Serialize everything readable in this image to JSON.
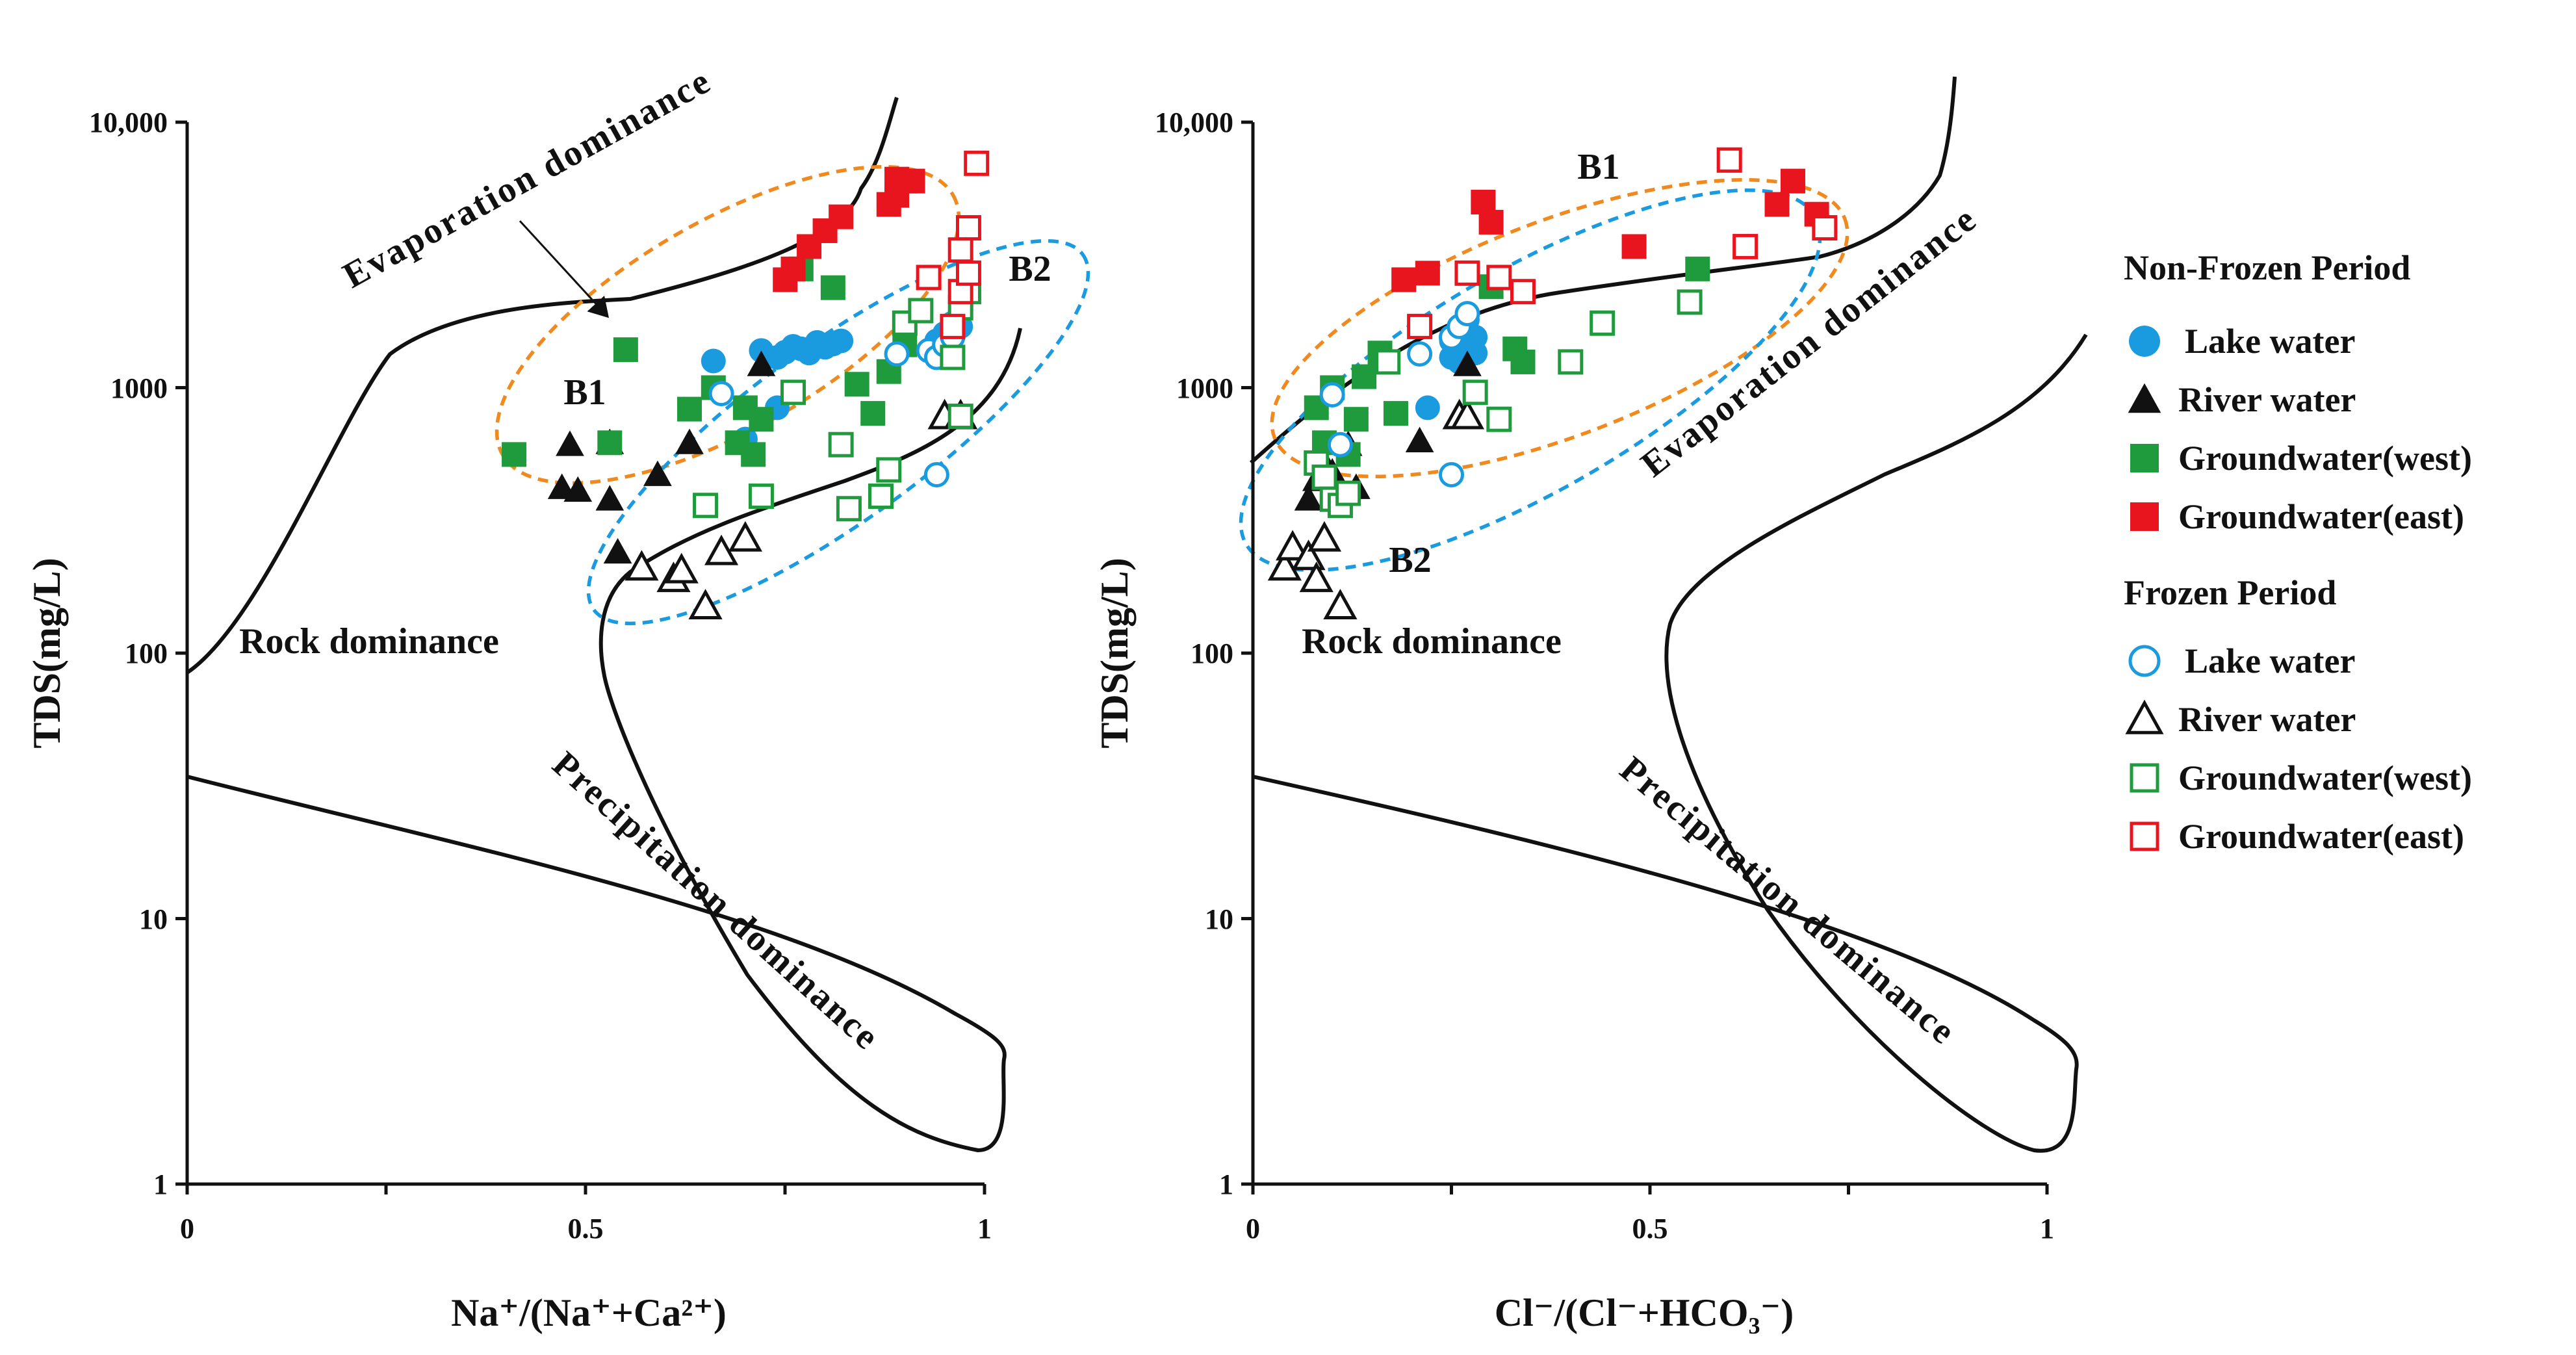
{
  "chart_data": [
    {
      "type": "scatter",
      "id": "gibbs-na",
      "xlabel": "Na⁺/(Na⁺+Ca²⁺)",
      "ylabel": "TDS(mg/L)",
      "xlim": [
        0,
        1
      ],
      "ylim": [
        1,
        10000
      ],
      "yscale": "log",
      "x_ticks": [
        {
          "value": 0,
          "label": "0"
        },
        {
          "value": 0.5,
          "label": "0.5"
        },
        {
          "value": 1,
          "label": "1"
        }
      ],
      "y_ticks": [
        {
          "value": 1,
          "label": "1"
        },
        {
          "value": 10,
          "label": "10"
        },
        {
          "value": 100,
          "label": "100"
        },
        {
          "value": 1000,
          "label": "1000"
        },
        {
          "value": 10000,
          "label": "10,000"
        }
      ],
      "region_labels": [
        "Evaporation dominance",
        "Rock dominance",
        "Precipitation dominance"
      ],
      "group_labels": [
        "B1",
        "B2"
      ],
      "series": [
        {
          "name": "Lake water (non-frozen)",
          "marker": "circle",
          "filled": true,
          "color": "#1a9be0",
          "points": [
            [
              0.66,
              1260
            ],
            [
              0.7,
              640
            ],
            [
              0.72,
              1380
            ],
            [
              0.74,
              1300
            ],
            [
              0.75,
              1360
            ],
            [
              0.76,
              1430
            ],
            [
              0.77,
              1400
            ],
            [
              0.78,
              1350
            ],
            [
              0.79,
              1480
            ],
            [
              0.8,
              1420
            ],
            [
              0.81,
              1460
            ],
            [
              0.82,
              1500
            ],
            [
              0.74,
              840
            ],
            [
              0.94,
              1500
            ],
            [
              0.95,
              1600
            ],
            [
              0.96,
              1750
            ],
            [
              0.97,
              1700
            ]
          ]
        },
        {
          "name": "River water (non-frozen)",
          "marker": "triangle",
          "filled": true,
          "color": "#111111",
          "points": [
            [
              0.48,
              610
            ],
            [
              0.47,
              420
            ],
            [
              0.49,
              410
            ],
            [
              0.53,
              620
            ],
            [
              0.53,
              380
            ],
            [
              0.54,
              240
            ],
            [
              0.59,
              470
            ],
            [
              0.63,
              620
            ],
            [
              0.72,
              1220
            ]
          ]
        },
        {
          "name": "Groundwater(west) (non-frozen)",
          "marker": "square",
          "filled": true,
          "color": "#1f9a3c",
          "points": [
            [
              0.41,
              560
            ],
            [
              0.53,
              620
            ],
            [
              0.55,
              1390
            ],
            [
              0.63,
              830
            ],
            [
              0.66,
              1000
            ],
            [
              0.69,
              620
            ],
            [
              0.7,
              840
            ],
            [
              0.71,
              560
            ],
            [
              0.72,
              760
            ],
            [
              0.77,
              2800
            ],
            [
              0.81,
              2380
            ],
            [
              0.84,
              1030
            ],
            [
              0.86,
              800
            ],
            [
              0.88,
              1150
            ],
            [
              0.9,
              1450
            ]
          ]
        },
        {
          "name": "Groundwater(east) (non-frozen)",
          "marker": "square",
          "filled": true,
          "color": "#e8141e",
          "points": [
            [
              0.75,
              2550
            ],
            [
              0.76,
              2800
            ],
            [
              0.78,
              3400
            ],
            [
              0.8,
              3900
            ],
            [
              0.82,
              4400
            ],
            [
              0.88,
              4900
            ],
            [
              0.89,
              5300
            ],
            [
              0.9,
              6000
            ],
            [
              0.89,
              6100
            ],
            [
              0.91,
              6000
            ]
          ]
        },
        {
          "name": "Lake water (frozen)",
          "marker": "circle",
          "filled": false,
          "color": "#1a9be0",
          "points": [
            [
              0.67,
              950
            ],
            [
              0.89,
              1340
            ],
            [
              0.93,
              1380
            ],
            [
              0.94,
              1300
            ],
            [
              0.95,
              1450
            ],
            [
              0.96,
              1550
            ],
            [
              0.97,
              1950
            ],
            [
              0.94,
              470
            ]
          ]
        },
        {
          "name": "River water (frozen)",
          "marker": "triangle",
          "filled": false,
          "color": "#111111",
          "points": [
            [
              0.57,
              210
            ],
            [
              0.61,
              190
            ],
            [
              0.62,
              205
            ],
            [
              0.65,
              150
            ],
            [
              0.67,
              240
            ],
            [
              0.7,
              270
            ],
            [
              0.95,
              780
            ],
            [
              0.97,
              780
            ]
          ]
        },
        {
          "name": "Groundwater(west) (frozen)",
          "marker": "square",
          "filled": false,
          "color": "#1f9a3c",
          "points": [
            [
              0.65,
              360
            ],
            [
              0.72,
              390
            ],
            [
              0.76,
              960
            ],
            [
              0.82,
              610
            ],
            [
              0.83,
              350
            ],
            [
              0.87,
              390
            ],
            [
              0.88,
              490
            ],
            [
              0.9,
              1750
            ],
            [
              0.92,
              1950
            ],
            [
              0.96,
              1300
            ],
            [
              0.97,
              2000
            ],
            [
              0.98,
              2300
            ],
            [
              0.97,
              780
            ]
          ]
        },
        {
          "name": "Groundwater(east) (frozen)",
          "marker": "square",
          "filled": false,
          "color": "#e8141e",
          "points": [
            [
              0.93,
              2600
            ],
            [
              0.97,
              2300
            ],
            [
              0.98,
              2700
            ],
            [
              0.97,
              3300
            ],
            [
              0.98,
              4000
            ],
            [
              0.99,
              7000
            ],
            [
              0.96,
              1700
            ]
          ]
        }
      ]
    },
    {
      "type": "scatter",
      "id": "gibbs-cl",
      "xlabel": "Cl⁻/(Cl⁻+HCO₃⁻)",
      "ylabel": "TDS(mg/L)",
      "xlim": [
        0,
        1
      ],
      "ylim": [
        1,
        10000
      ],
      "yscale": "log",
      "x_ticks": [
        {
          "value": 0,
          "label": "0"
        },
        {
          "value": 0.5,
          "label": "0.5"
        },
        {
          "value": 1,
          "label": "1"
        }
      ],
      "y_ticks": [
        {
          "value": 1,
          "label": "1"
        },
        {
          "value": 10,
          "label": "10"
        },
        {
          "value": 100,
          "label": "100"
        },
        {
          "value": 1000,
          "label": "1000"
        },
        {
          "value": 10000,
          "label": "10,000"
        }
      ],
      "region_labels": [
        "Evaporation dominance",
        "Rock dominance",
        "Precipitation dominance"
      ],
      "group_labels": [
        "B1",
        "B2"
      ],
      "series": [
        {
          "name": "Lake water (non-frozen)",
          "marker": "circle",
          "filled": true,
          "color": "#1a9be0",
          "points": [
            [
              0.25,
              1500
            ],
            [
              0.26,
              1700
            ],
            [
              0.27,
              1400
            ],
            [
              0.26,
              1250
            ],
            [
              0.28,
              1550
            ],
            [
              0.27,
              1800
            ],
            [
              0.25,
              1300
            ],
            [
              0.26,
              1450
            ],
            [
              0.22,
              840
            ],
            [
              0.28,
              1350
            ],
            [
              0.27,
              1600
            ]
          ]
        },
        {
          "name": "River water (non-frozen)",
          "marker": "triangle",
          "filled": true,
          "color": "#111111",
          "points": [
            [
              0.07,
              380
            ],
            [
              0.08,
              450
            ],
            [
              0.09,
              520
            ],
            [
              0.1,
              480
            ],
            [
              0.11,
              420
            ],
            [
              0.12,
              610
            ],
            [
              0.13,
              420
            ],
            [
              0.21,
              630
            ],
            [
              0.27,
              1220
            ]
          ]
        },
        {
          "name": "Groundwater(west) (non-frozen)",
          "marker": "square",
          "filled": true,
          "color": "#1f9a3c",
          "points": [
            [
              0.08,
              840
            ],
            [
              0.09,
              620
            ],
            [
              0.1,
              1000
            ],
            [
              0.12,
              560
            ],
            [
              0.13,
              760
            ],
            [
              0.14,
              1100
            ],
            [
              0.16,
              1350
            ],
            [
              0.18,
              800
            ],
            [
              0.3,
              2400
            ],
            [
              0.33,
              1400
            ],
            [
              0.34,
              1250
            ],
            [
              0.56,
              2800
            ]
          ]
        },
        {
          "name": "Groundwater(east) (non-frozen)",
          "marker": "square",
          "filled": true,
          "color": "#e8141e",
          "points": [
            [
              0.19,
              2550
            ],
            [
              0.22,
              2700
            ],
            [
              0.29,
              5000
            ],
            [
              0.3,
              4200
            ],
            [
              0.48,
              3400
            ],
            [
              0.66,
              4900
            ],
            [
              0.68,
              6000
            ],
            [
              0.71,
              4500
            ]
          ]
        },
        {
          "name": "Lake water (frozen)",
          "marker": "circle",
          "filled": false,
          "color": "#1a9be0",
          "points": [
            [
              0.1,
              940
            ],
            [
              0.11,
              610
            ],
            [
              0.21,
              1340
            ],
            [
              0.25,
              1550
            ],
            [
              0.26,
              1700
            ],
            [
              0.27,
              1900
            ],
            [
              0.25,
              470
            ]
          ]
        },
        {
          "name": "River water (frozen)",
          "marker": "triangle",
          "filled": false,
          "color": "#111111",
          "points": [
            [
              0.04,
              210
            ],
            [
              0.05,
              250
            ],
            [
              0.07,
              230
            ],
            [
              0.08,
              190
            ],
            [
              0.09,
              270
            ],
            [
              0.11,
              150
            ],
            [
              0.26,
              780
            ],
            [
              0.27,
              780
            ]
          ]
        },
        {
          "name": "Groundwater(west) (frozen)",
          "marker": "square",
          "filled": false,
          "color": "#1f9a3c",
          "points": [
            [
              0.08,
              520
            ],
            [
              0.09,
              460
            ],
            [
              0.1,
              380
            ],
            [
              0.11,
              360
            ],
            [
              0.12,
              400
            ],
            [
              0.17,
              1250
            ],
            [
              0.28,
              960
            ],
            [
              0.31,
              760
            ],
            [
              0.4,
              1250
            ],
            [
              0.44,
              1750
            ],
            [
              0.55,
              2100
            ]
          ]
        },
        {
          "name": "Groundwater(east) (frozen)",
          "marker": "square",
          "filled": false,
          "color": "#e8141e",
          "points": [
            [
              0.21,
              1700
            ],
            [
              0.27,
              2700
            ],
            [
              0.31,
              2600
            ],
            [
              0.34,
              2300
            ],
            [
              0.6,
              7200
            ],
            [
              0.62,
              3400
            ],
            [
              0.72,
              4000
            ]
          ]
        }
      ]
    }
  ],
  "legend": {
    "non_frozen_title": "Non-Frozen Period",
    "frozen_title": "Frozen  Period",
    "non_frozen_items": [
      {
        "label": "Lake water",
        "marker": "circle",
        "filled": true,
        "color": "#1a9be0"
      },
      {
        "label": "River water",
        "marker": "triangle",
        "filled": true,
        "color": "#111111"
      },
      {
        "label": "Groundwater(west)",
        "marker": "square",
        "filled": true,
        "color": "#1f9a3c"
      },
      {
        "label": "Groundwater(east)",
        "marker": "square",
        "filled": true,
        "color": "#e8141e"
      }
    ],
    "frozen_items": [
      {
        "label": "Lake water",
        "marker": "circle",
        "filled": false,
        "color": "#1a9be0"
      },
      {
        "label": "River water",
        "marker": "triangle",
        "filled": false,
        "color": "#111111"
      },
      {
        "label": "Groundwater(west)",
        "marker": "square",
        "filled": false,
        "color": "#1f9a3c"
      },
      {
        "label": "Groundwater(east)",
        "marker": "square",
        "filled": false,
        "color": "#e8141e"
      }
    ]
  }
}
